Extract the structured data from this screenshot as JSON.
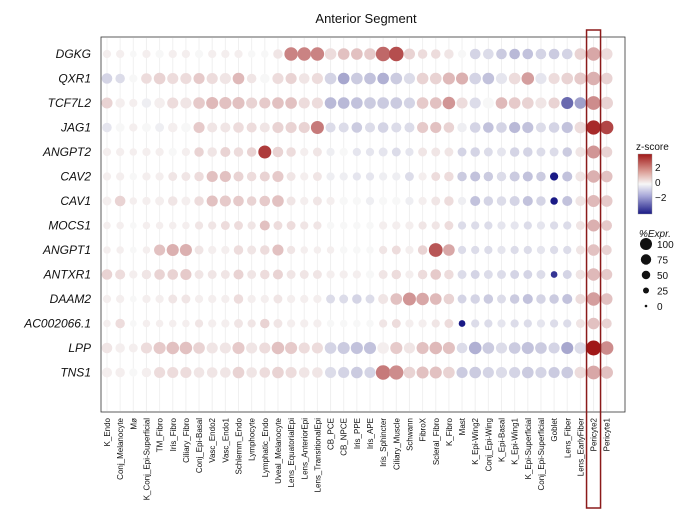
{
  "chart_data": {
    "type": "dotplot",
    "title": "Anterior Segment",
    "genes": [
      "DGKG",
      "QXR1",
      "TCF7L2",
      "JAG1",
      "ANGPT2",
      "CAV2",
      "CAV1",
      "MOCS1",
      "ANGPT1",
      "ANTXR1",
      "DAAM2",
      "AC002066.1",
      "LPP",
      "TNS1"
    ],
    "cell_types": [
      "K_Endo",
      "Conj_Melanocyte",
      "Mø",
      "K_Conj_Epi-Superficial",
      "TM_Fibro",
      "Iris_Fibro",
      "Ciliary_Fibro",
      "Conj_Epi-Basal",
      "Vasc_Endo2",
      "Vasc_Endo1",
      "Schlemm_Endo",
      "Lymphocyte",
      "Lymphatic_Endo",
      "Uveal_Melanocyte",
      "Lens_EquatorialEpi",
      "Lens_AnteriorEpi",
      "Lens_TransitionalEpi",
      "CB_PCE",
      "CB_NPCE",
      "Iris_PPE",
      "Iris_APE",
      "Iris_Sphincter",
      "Ciliary_Muscle",
      "Schwann",
      "FibroX",
      "Scleral_Fibro",
      "K_Fibro",
      "Mast",
      "K_Epi-Wing2",
      "Conj_Epi-Wing",
      "K_Epi-Basal",
      "K_Epi-Wing1",
      "K_Epi-Superficial",
      "Conj_Epi-Superficial",
      "Goblet",
      "Lens_Fiber",
      "Lens_EarlyFiber",
      "Pericyte2",
      "Pericyte1"
    ],
    "highlight": "Pericyte2",
    "zscore": [
      [
        0.1,
        0.1,
        0,
        0.1,
        0,
        0.1,
        0.1,
        0,
        0.1,
        0.1,
        0.1,
        0,
        0,
        0.2,
        1.3,
        1.3,
        1.3,
        0.3,
        0.6,
        0.6,
        0.5,
        1.6,
        1.9,
        0.4,
        0.3,
        0.3,
        0.2,
        0,
        -0.4,
        -0.3,
        -0.5,
        -0.7,
        -0.6,
        -0.4,
        -0.5,
        -0.4,
        0.4,
        0.9,
        0.3
      ],
      [
        -0.4,
        -0.3,
        0,
        0.3,
        0.4,
        0.3,
        0.3,
        0.5,
        0.3,
        0.2,
        0.7,
        0.2,
        0,
        0.3,
        0.4,
        0.2,
        0.3,
        -0.4,
        -0.9,
        -0.5,
        -0.6,
        -0.8,
        -0.5,
        -0.3,
        0.4,
        0.4,
        0.7,
        0.8,
        -0.4,
        -0.6,
        -0.2,
        0.3,
        1.0,
        -0.2,
        0.3,
        0.4,
        0.5,
        0.8,
        0.4
      ],
      [
        0.4,
        0.1,
        0.1,
        -0.1,
        0.1,
        0.3,
        0.2,
        0.5,
        0.7,
        0.6,
        0.6,
        0.4,
        0.5,
        0.6,
        0.6,
        0.3,
        0.3,
        -0.7,
        -0.7,
        -0.6,
        -0.5,
        -0.5,
        -0.5,
        -0.4,
        0.5,
        0.6,
        1.1,
        0.3,
        -0.3,
        0,
        0.7,
        0.5,
        0.4,
        0.2,
        0.4,
        -1.6,
        -1.0,
        1.2,
        0.4
      ],
      [
        -0.2,
        0,
        0.1,
        0,
        -0.1,
        0.1,
        0,
        0.5,
        0.2,
        0.2,
        0.3,
        0.3,
        0.2,
        0.4,
        0.4,
        0.4,
        1.4,
        -0.3,
        -0.3,
        -0.5,
        -0.3,
        -0.4,
        -0.3,
        -0.3,
        0.5,
        0.6,
        0.4,
        -0.1,
        -0.4,
        -0.6,
        -0.4,
        -0.7,
        -0.6,
        -0.3,
        -0.4,
        -0.6,
        0.3,
        2.3,
        2.0
      ],
      [
        0.1,
        0.1,
        0.1,
        0.1,
        0.1,
        0,
        0.1,
        0.4,
        0.2,
        0.4,
        0.3,
        0.4,
        2.1,
        0.4,
        0.3,
        0.1,
        0.2,
        -0.1,
        0,
        -0.2,
        -0.2,
        -0.2,
        -0.3,
        -0.2,
        0.2,
        0.2,
        0.2,
        -0.4,
        -0.4,
        -0.3,
        -0.2,
        -0.4,
        -0.4,
        -0.3,
        -0.3,
        -0.5,
        0.2,
        1.1,
        0.4
      ],
      [
        0.1,
        0.1,
        0,
        0.1,
        0.1,
        0.2,
        0.2,
        0.3,
        0.6,
        0.6,
        0.4,
        0.3,
        0.4,
        0.5,
        0.2,
        0.1,
        0.2,
        -0.1,
        -0.1,
        -0.2,
        -0.2,
        -0.1,
        -0.1,
        -0.3,
        0.1,
        0.3,
        0.3,
        -0.5,
        -0.6,
        -0.5,
        -0.3,
        -0.5,
        -0.6,
        -0.5,
        -2.6,
        -0.6,
        0.2,
        0.8,
        0.6
      ],
      [
        0.1,
        0.4,
        0.1,
        0.1,
        0.1,
        0.2,
        0.1,
        0.3,
        0.6,
        0.5,
        0.5,
        0.4,
        0.5,
        0.6,
        0.2,
        0.1,
        0.2,
        0.1,
        0,
        0,
        -0.1,
        0,
        0,
        -0.1,
        0.1,
        0.2,
        0.3,
        -0.1,
        -0.6,
        -0.4,
        -0.3,
        -0.4,
        -0.6,
        -0.4,
        -2.8,
        -0.6,
        0.2,
        0.7,
        0.5
      ],
      [
        0.1,
        0.1,
        0,
        0.1,
        0.1,
        0.1,
        0.1,
        0.2,
        0.2,
        0.3,
        0.3,
        0.2,
        0.6,
        0.3,
        0.3,
        0.2,
        0.2,
        0,
        0,
        0,
        0,
        0.1,
        0.1,
        0.1,
        0.2,
        0.2,
        0.3,
        -0.3,
        -0.3,
        -0.3,
        -0.2,
        -0.2,
        -0.3,
        -0.2,
        -0.3,
        -0.3,
        0.2,
        0.8,
        0.5
      ],
      [
        0.1,
        0.1,
        0,
        0.1,
        0.6,
        0.8,
        0.8,
        0.2,
        0.1,
        0.1,
        0.3,
        0.2,
        0.3,
        0.6,
        0.2,
        0.1,
        0.1,
        0.1,
        0,
        0,
        0,
        0.2,
        0.3,
        0.1,
        0.4,
        1.8,
        0.9,
        -0.3,
        -0.3,
        -0.3,
        -0.2,
        -0.3,
        -0.3,
        -0.2,
        -0.3,
        -0.3,
        0.2,
        0.6,
        0.4
      ],
      [
        0.4,
        0.3,
        0.1,
        0.2,
        0.4,
        0.4,
        0.5,
        0.2,
        0.2,
        0.2,
        0.4,
        0.2,
        0.3,
        0.4,
        0.2,
        0.2,
        0.2,
        0.1,
        0.1,
        0.1,
        0,
        0.2,
        0.3,
        0.1,
        0.3,
        0.5,
        0.3,
        -0.3,
        -0.4,
        -0.3,
        -0.3,
        -0.4,
        -0.4,
        -0.3,
        -2.2,
        -0.4,
        0.2,
        0.7,
        0.5
      ],
      [
        0.1,
        0.1,
        0,
        0.1,
        0.1,
        0.2,
        0.2,
        0.1,
        0.1,
        0.1,
        0.3,
        0.1,
        0.1,
        0.2,
        0.1,
        0.1,
        0.1,
        -0.3,
        -0.3,
        -0.4,
        -0.3,
        0.2,
        0.6,
        1.1,
        0.9,
        0.7,
        0.4,
        -0.4,
        -0.4,
        -0.5,
        -0.3,
        -0.5,
        -0.6,
        -0.4,
        -0.5,
        -0.6,
        0.3,
        1.0,
        0.6
      ],
      [
        0.1,
        0.3,
        0,
        0.1,
        0.1,
        0.1,
        0.1,
        0.2,
        0.1,
        0.1,
        0.2,
        0.2,
        0.4,
        0.2,
        0.1,
        0.1,
        0.1,
        0,
        0,
        0,
        0,
        0.2,
        0.3,
        0.1,
        0.1,
        0.2,
        0.3,
        -2.8,
        -0.3,
        -0.3,
        -0.2,
        -0.3,
        -0.3,
        -0.2,
        -0.3,
        -0.3,
        0.2,
        0.6,
        0.4
      ],
      [
        0.2,
        0.1,
        0.1,
        0.3,
        0.5,
        0.6,
        0.6,
        0.4,
        0.2,
        0.2,
        0.5,
        0.2,
        0.3,
        0.6,
        0.5,
        0.3,
        0.3,
        -0.4,
        -0.5,
        -0.6,
        -0.6,
        0.1,
        0.5,
        0.2,
        0.6,
        0.7,
        0.6,
        -0.3,
        -0.8,
        -0.5,
        -0.3,
        -0.5,
        -0.6,
        -0.5,
        -0.4,
        -0.9,
        -0.3,
        2.5,
        1.2
      ],
      [
        0.1,
        0.1,
        0,
        0.1,
        0.3,
        0.3,
        0.3,
        0.2,
        0.2,
        0.2,
        0.4,
        0.2,
        0.3,
        0.4,
        0.3,
        0.2,
        0.2,
        -0.3,
        -0.4,
        -0.5,
        -0.4,
        1.4,
        1.2,
        0.4,
        0.6,
        0.6,
        0.4,
        -0.5,
        -0.5,
        -0.4,
        -0.3,
        -0.4,
        -0.5,
        -0.4,
        -0.5,
        -0.5,
        0.3,
        0.9,
        0.6
      ]
    ],
    "pct_expr": [
      [
        30,
        30,
        20,
        30,
        30,
        30,
        30,
        30,
        30,
        30,
        30,
        25,
        25,
        40,
        80,
        80,
        80,
        60,
        60,
        60,
        60,
        95,
        95,
        55,
        40,
        40,
        40,
        30,
        50,
        50,
        50,
        50,
        50,
        50,
        50,
        50,
        60,
        80,
        60
      ],
      [
        50,
        40,
        30,
        50,
        60,
        55,
        55,
        55,
        55,
        55,
        60,
        40,
        40,
        55,
        55,
        50,
        55,
        60,
        60,
        60,
        60,
        60,
        60,
        55,
        60,
        60,
        65,
        65,
        60,
        60,
        55,
        60,
        70,
        55,
        55,
        60,
        65,
        80,
        60
      ],
      [
        55,
        40,
        30,
        40,
        50,
        55,
        55,
        60,
        65,
        65,
        65,
        55,
        55,
        60,
        60,
        55,
        55,
        60,
        60,
        60,
        60,
        60,
        60,
        55,
        60,
        60,
        70,
        55,
        55,
        55,
        60,
        60,
        60,
        55,
        55,
        65,
        60,
        85,
        70
      ],
      [
        40,
        35,
        30,
        35,
        35,
        40,
        40,
        55,
        45,
        45,
        50,
        45,
        45,
        55,
        55,
        55,
        75,
        45,
        45,
        50,
        45,
        50,
        45,
        45,
        55,
        55,
        50,
        40,
        50,
        50,
        50,
        55,
        55,
        45,
        50,
        55,
        60,
        90,
        80
      ],
      [
        30,
        30,
        25,
        30,
        30,
        30,
        30,
        40,
        40,
        45,
        40,
        40,
        75,
        50,
        40,
        30,
        35,
        30,
        30,
        30,
        30,
        35,
        35,
        30,
        35,
        35,
        35,
        35,
        40,
        35,
        35,
        40,
        40,
        35,
        35,
        40,
        45,
        75,
        55
      ],
      [
        30,
        30,
        25,
        30,
        30,
        35,
        35,
        40,
        55,
        55,
        45,
        40,
        45,
        55,
        35,
        30,
        35,
        30,
        30,
        30,
        30,
        30,
        30,
        35,
        30,
        35,
        40,
        40,
        45,
        40,
        40,
        45,
        45,
        40,
        30,
        45,
        45,
        70,
        60
      ],
      [
        35,
        50,
        25,
        30,
        35,
        40,
        35,
        40,
        55,
        55,
        50,
        40,
        50,
        60,
        35,
        30,
        35,
        30,
        30,
        30,
        30,
        30,
        30,
        30,
        30,
        35,
        40,
        30,
        45,
        40,
        40,
        45,
        45,
        40,
        25,
        45,
        45,
        65,
        60
      ],
      [
        25,
        25,
        20,
        25,
        25,
        25,
        25,
        30,
        30,
        35,
        35,
        30,
        45,
        35,
        35,
        30,
        30,
        25,
        25,
        25,
        25,
        30,
        30,
        30,
        30,
        30,
        35,
        30,
        30,
        30,
        30,
        30,
        30,
        30,
        30,
        30,
        35,
        65,
        50
      ],
      [
        25,
        25,
        20,
        25,
        55,
        65,
        65,
        35,
        30,
        30,
        40,
        35,
        40,
        55,
        30,
        25,
        25,
        25,
        25,
        25,
        25,
        30,
        35,
        30,
        40,
        85,
        60,
        30,
        30,
        30,
        30,
        30,
        30,
        30,
        30,
        30,
        35,
        60,
        45
      ],
      [
        50,
        45,
        30,
        40,
        50,
        50,
        55,
        35,
        35,
        35,
        45,
        35,
        40,
        45,
        35,
        35,
        35,
        30,
        30,
        30,
        30,
        35,
        40,
        30,
        40,
        50,
        40,
        35,
        35,
        35,
        35,
        35,
        35,
        35,
        20,
        35,
        40,
        70,
        55
      ],
      [
        30,
        30,
        20,
        30,
        30,
        35,
        35,
        30,
        30,
        30,
        40,
        30,
        30,
        35,
        30,
        30,
        30,
        35,
        35,
        40,
        35,
        45,
        60,
        75,
        70,
        60,
        50,
        35,
        40,
        40,
        35,
        40,
        45,
        40,
        40,
        45,
        45,
        80,
        60
      ],
      [
        25,
        40,
        20,
        25,
        25,
        25,
        25,
        30,
        30,
        30,
        35,
        30,
        40,
        35,
        30,
        30,
        30,
        25,
        25,
        25,
        25,
        30,
        35,
        30,
        30,
        30,
        35,
        20,
        30,
        30,
        30,
        30,
        30,
        30,
        30,
        30,
        35,
        60,
        45
      ],
      [
        50,
        40,
        35,
        55,
        65,
        70,
        70,
        60,
        55,
        55,
        65,
        55,
        55,
        70,
        65,
        55,
        55,
        60,
        65,
        65,
        65,
        60,
        65,
        55,
        65,
        70,
        65,
        50,
        70,
        60,
        55,
        60,
        65,
        60,
        55,
        65,
        60,
        100,
        80
      ],
      [
        45,
        40,
        30,
        40,
        55,
        55,
        55,
        50,
        50,
        50,
        60,
        50,
        50,
        60,
        55,
        50,
        50,
        55,
        55,
        60,
        55,
        95,
        90,
        60,
        65,
        65,
        60,
        55,
        60,
        55,
        55,
        55,
        60,
        55,
        55,
        60,
        60,
        85,
        70
      ]
    ],
    "legend_color": {
      "title": "z-score",
      "ticks": [
        "2",
        "0",
        "−2"
      ],
      "min": -2.8,
      "max": 2.8
    },
    "legend_size": {
      "title": "%Expr.",
      "ticks": [
        "100",
        "75",
        "50",
        "25",
        "0"
      ]
    }
  }
}
